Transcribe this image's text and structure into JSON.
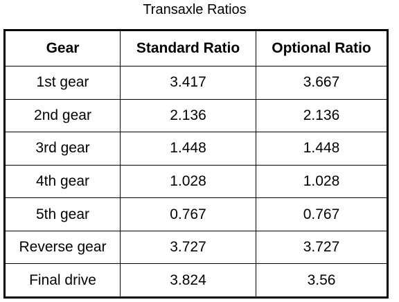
{
  "title": "Transaxle Ratios",
  "table": {
    "header": [
      "Gear",
      "Standard Ratio",
      "Optional Ratio"
    ],
    "rows": [
      [
        "1st gear",
        "3.417",
        "3.667"
      ],
      [
        "2nd gear",
        "2.136",
        "2.136"
      ],
      [
        "3rd gear",
        "1.448",
        "1.448"
      ],
      [
        "4th gear",
        "1.028",
        "1.028"
      ],
      [
        "5th gear",
        "0.767",
        "0.767"
      ],
      [
        "Reverse gear",
        "3.727",
        "3.727"
      ],
      [
        "Final drive",
        "3.824",
        "3.56"
      ]
    ]
  }
}
